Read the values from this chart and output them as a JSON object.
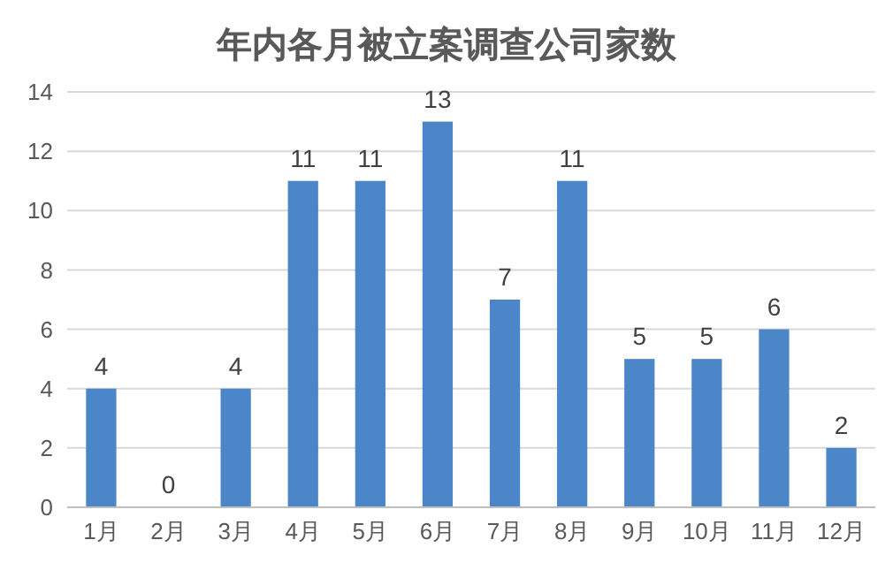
{
  "chart_data": {
    "type": "bar",
    "title": "年内各月被立案调查公司家数",
    "categories": [
      "1月",
      "2月",
      "3月",
      "4月",
      "5月",
      "6月",
      "7月",
      "8月",
      "9月",
      "10月",
      "11月",
      "12月"
    ],
    "values": [
      4,
      0,
      4,
      11,
      11,
      13,
      7,
      11,
      5,
      5,
      6,
      2
    ],
    "color": "#4a86c8",
    "ylim": [
      0,
      14
    ],
    "yticks": [
      0,
      2,
      4,
      6,
      8,
      10,
      12,
      14
    ],
    "grid": "y",
    "data_labels": true
  }
}
